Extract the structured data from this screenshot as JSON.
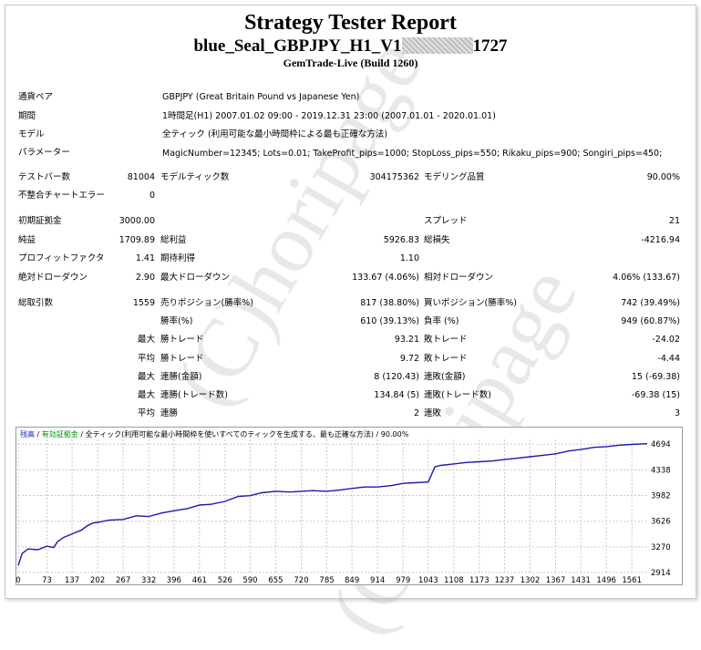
{
  "header": {
    "title": "Strategy Tester Report",
    "ea_name": "blue_Seal_GBPJPY_H1_V1",
    "ea_suffix": "1727",
    "server": "GemTrade-Live (Build 1260)"
  },
  "info": {
    "symbol_label": "通貨ペア",
    "symbol_value": "GBPJPY (Great Britain Pound vs Japanese Yen)",
    "period_label": "期間",
    "period_value": "1時間足(H1) 2007.01.02 09:00 - 2019.12.31 23:00 (2007.01.01 - 2020.01.01)",
    "model_label": "モデル",
    "model_value": "全ティック (利用可能な最小時間枠による最も正確な方法)",
    "params_label": "パラメーター",
    "params_value": "MagicNumber=12345; Lots=0.01; TakeProfit_pips=1000; StopLoss_pips=550; Rikaku_pips=900; Songiri_pips=450;"
  },
  "stats": {
    "bars_label": "テストバー数",
    "bars": "81004",
    "ticks_label": "モデルティック数",
    "ticks": "304175362",
    "quality_label": "モデリング品質",
    "quality": "90.00%",
    "errors_label": "不整合チャートエラー",
    "errors": "0",
    "deposit_label": "初期証拠金",
    "deposit": "3000.00",
    "spread_label": "スプレッド",
    "spread": "21",
    "net_label": "純益",
    "net": "1709.89",
    "gross_profit_label": "総利益",
    "gross_profit": "5926.83",
    "gross_loss_label": "総損失",
    "gross_loss": "-4216.94",
    "pf_label": "プロフィットファクタ",
    "pf": "1.41",
    "expected_label": "期待利得",
    "expected": "1.10",
    "abs_dd_label": "絶対ドローダウン",
    "abs_dd": "2.90",
    "max_dd_label": "最大ドローダウン",
    "max_dd": "133.67 (4.06%)",
    "rel_dd_label": "相対ドローダウン",
    "rel_dd": "4.06% (133.67)",
    "trades_label": "総取引数",
    "trades": "1559",
    "short_label": "売りポジション(勝率%)",
    "short": "817 (38.80%)",
    "long_label": "買いポジション(勝率%)",
    "long": "742 (39.49%)",
    "win_label": "勝率(%)",
    "win": "610 (39.13%)",
    "loss_label": "負率 (%)",
    "loss": "949 (60.87%)",
    "max_prefix": "最大",
    "avg_prefix": "平均",
    "largest_win_label": "勝トレード",
    "largest_win": "93.21",
    "largest_loss_label": "敗トレード",
    "largest_loss": "-24.02",
    "avg_win_label": "勝トレード",
    "avg_win": "9.72",
    "avg_loss_label": "敗トレード",
    "avg_loss": "-4.44",
    "max_cons_wins_label": "連勝(金額)",
    "max_cons_wins": "8 (120.43)",
    "max_cons_losses_label": "連敗(金額)",
    "max_cons_losses": "15 (-69.38)",
    "max_cons_profit_label": "連勝(トレード数)",
    "max_cons_profit": "134.84 (5)",
    "max_cons_loss_label": "連敗(トレード数)",
    "max_cons_loss": "-69.38 (15)",
    "avg_cons_wins_label": "連勝",
    "avg_cons_wins": "2",
    "avg_cons_losses_label": "連敗",
    "avg_cons_losses": "3"
  },
  "watermark": "(C)horipage",
  "legend": {
    "balance": "残高",
    "equity": "有効証拠金",
    "model": "全ティック(利用可能な最小時間枠を使いすべてのティックを生成する、最も正確な方法)",
    "quality": "90.00%"
  },
  "chart_data": {
    "type": "line",
    "x_ticks": [
      0,
      73,
      137,
      202,
      267,
      332,
      396,
      461,
      526,
      590,
      655,
      720,
      785,
      849,
      914,
      979,
      1043,
      1108,
      1173,
      1237,
      1302,
      1367,
      1431,
      1496,
      1561
    ],
    "y_ticks": [
      2914,
      3270,
      3626,
      3982,
      4338,
      4694
    ],
    "xlim": [
      0,
      1600
    ],
    "ylim": [
      2914,
      4760
    ],
    "grid": true,
    "series": [
      {
        "color": "#1a1ab0",
        "x": [
          0,
          10,
          25,
          50,
          73,
          90,
          100,
          115,
          137,
          160,
          175,
          190,
          202,
          230,
          267,
          300,
          332,
          365,
          396,
          430,
          461,
          490,
          526,
          560,
          590,
          620,
          655,
          690,
          720,
          750,
          785,
          820,
          849,
          880,
          914,
          950,
          979,
          1010,
          1043,
          1060,
          1075,
          1108,
          1140,
          1173,
          1205,
          1237,
          1270,
          1302,
          1335,
          1367,
          1400,
          1431,
          1465,
          1496,
          1530,
          1561,
          1600
        ],
        "y": [
          3010,
          3180,
          3240,
          3230,
          3280,
          3260,
          3340,
          3400,
          3450,
          3500,
          3560,
          3600,
          3610,
          3640,
          3650,
          3700,
          3690,
          3740,
          3770,
          3800,
          3850,
          3860,
          3900,
          3970,
          3980,
          4020,
          4040,
          4030,
          4040,
          4050,
          4040,
          4060,
          4080,
          4100,
          4100,
          4120,
          4150,
          4160,
          4170,
          4380,
          4400,
          4420,
          4440,
          4450,
          4460,
          4480,
          4500,
          4520,
          4540,
          4560,
          4600,
          4620,
          4650,
          4660,
          4680,
          4690,
          4700
        ]
      }
    ]
  }
}
